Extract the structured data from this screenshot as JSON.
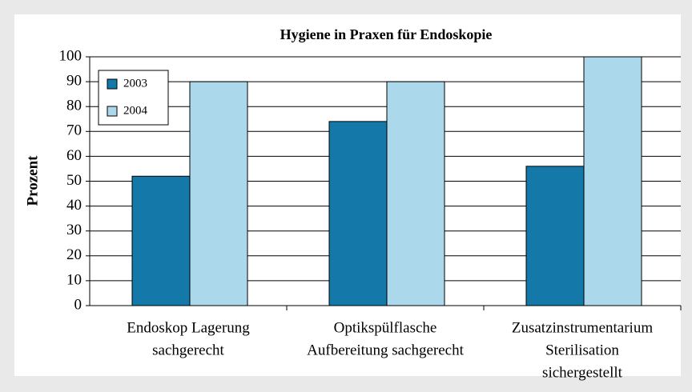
{
  "chart_data": {
    "type": "bar",
    "title": "Hygiene in Praxen für Endoskopie",
    "y_label": "Prozent",
    "categories": [
      [
        "Endoskop Lagerung",
        "sachgerecht"
      ],
      [
        "Optikspülflasche",
        "Aufbereitung sachgerecht"
      ],
      [
        "Zusatzinstrumentarium",
        "Sterilisation",
        "sichergestellt"
      ]
    ],
    "series": [
      {
        "name": "2003",
        "color": "#1479a8",
        "values": [
          52,
          74,
          56
        ]
      },
      {
        "name": "2004",
        "color": "#acd8ec",
        "values": [
          90,
          90,
          100
        ]
      }
    ],
    "ylim": [
      0,
      100
    ],
    "yticks": [
      0,
      10,
      20,
      30,
      40,
      50,
      60,
      70,
      80,
      90,
      100
    ],
    "grid": true,
    "legend": "upper left"
  }
}
